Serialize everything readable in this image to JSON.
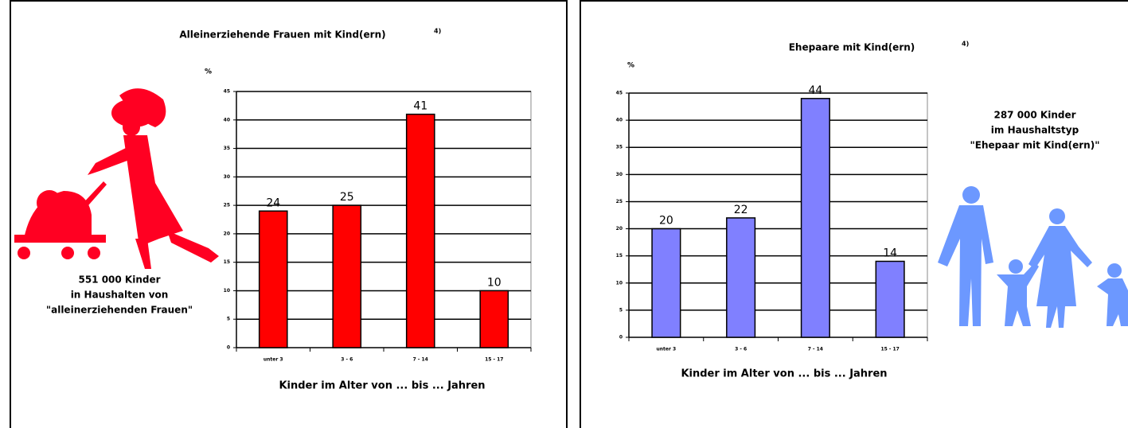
{
  "chart_data": [
    {
      "type": "bar",
      "title": "Alleinerziehende Frauen mit Kind(ern)",
      "title_note": "4)",
      "ylabel": "%",
      "xlabel": "Kinder im Alter von ... bis ... Jahren",
      "categories": [
        "unter 3",
        "3 - 6",
        "7 - 14",
        "15 - 17"
      ],
      "values": [
        24,
        25,
        41,
        10
      ],
      "color": "#ff0000",
      "ylim": [
        0,
        45
      ],
      "yticks": [
        0,
        5,
        10,
        15,
        20,
        25,
        30,
        35,
        40,
        45
      ],
      "grid": true,
      "annotations": [
        "551 000 Kinder",
        "in Haushalten von",
        "\"alleinerziehenden Frauen\""
      ]
    },
    {
      "type": "bar",
      "title": "Ehepaare mit Kind(ern)",
      "title_note": "4)",
      "ylabel": "%",
      "xlabel": "Kinder im Alter von ... bis ... Jahren",
      "categories": [
        "unter 3",
        "3 - 6",
        "7 - 14",
        "15 - 17"
      ],
      "values": [
        20,
        22,
        44,
        14
      ],
      "color": "#8080ff",
      "ylim": [
        0,
        45
      ],
      "yticks": [
        0,
        5,
        10,
        15,
        20,
        25,
        30,
        35,
        40,
        45
      ],
      "grid": true,
      "annotations": [
        "287 000 Kinder",
        "im Haushaltstyp",
        "\"Ehepaar mit Kind(ern)\""
      ]
    }
  ]
}
